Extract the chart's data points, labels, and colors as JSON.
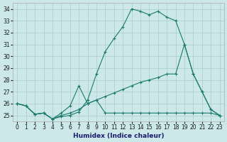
{
  "xlabel": "Humidex (Indice chaleur)",
  "bg_color": "#cce8e8",
  "grid_color": "#aacccc",
  "line_color": "#1a7a6e",
  "xlim": [
    -0.5,
    23.5
  ],
  "ylim": [
    24.5,
    34.5
  ],
  "yticks": [
    25,
    26,
    27,
    28,
    29,
    30,
    31,
    32,
    33,
    34
  ],
  "xticks": [
    0,
    1,
    2,
    3,
    4,
    5,
    6,
    7,
    8,
    9,
    10,
    11,
    12,
    13,
    14,
    15,
    16,
    17,
    18,
    19,
    20,
    21,
    22,
    23
  ],
  "line1_x": [
    0,
    1,
    2,
    3,
    4,
    5,
    6,
    7,
    8,
    9,
    10,
    11,
    12,
    13,
    14,
    15,
    16,
    17,
    18,
    19,
    20,
    21,
    22,
    23
  ],
  "line1_y": [
    26.0,
    25.8,
    25.1,
    25.2,
    24.7,
    24.9,
    25.0,
    25.3,
    26.3,
    28.5,
    30.4,
    31.5,
    32.5,
    34.0,
    33.8,
    33.5,
    33.8,
    33.3,
    33.0,
    31.0,
    28.5,
    27.0,
    25.5,
    25.0
  ],
  "line2_x": [
    0,
    1,
    2,
    3,
    4,
    5,
    6,
    7,
    8,
    9,
    10,
    11,
    12,
    13,
    14,
    15,
    16,
    17,
    18,
    19,
    20,
    21,
    22,
    23
  ],
  "line2_y": [
    26.0,
    25.8,
    25.1,
    25.2,
    24.7,
    25.2,
    25.8,
    27.5,
    26.0,
    26.3,
    25.2,
    25.2,
    25.2,
    25.2,
    25.2,
    25.2,
    25.2,
    25.2,
    25.2,
    25.2,
    25.2,
    25.2,
    25.2,
    25.0
  ],
  "line3_x": [
    0,
    1,
    2,
    3,
    4,
    5,
    6,
    7,
    8,
    9,
    10,
    11,
    12,
    13,
    14,
    15,
    16,
    17,
    18,
    19,
    20,
    21,
    22,
    23
  ],
  "line3_y": [
    26.0,
    25.8,
    25.1,
    25.2,
    24.7,
    25.0,
    25.2,
    25.5,
    26.0,
    26.3,
    26.6,
    26.9,
    27.2,
    27.5,
    27.8,
    28.0,
    28.2,
    28.5,
    28.5,
    31.0,
    28.5,
    27.0,
    25.5,
    25.0
  ]
}
